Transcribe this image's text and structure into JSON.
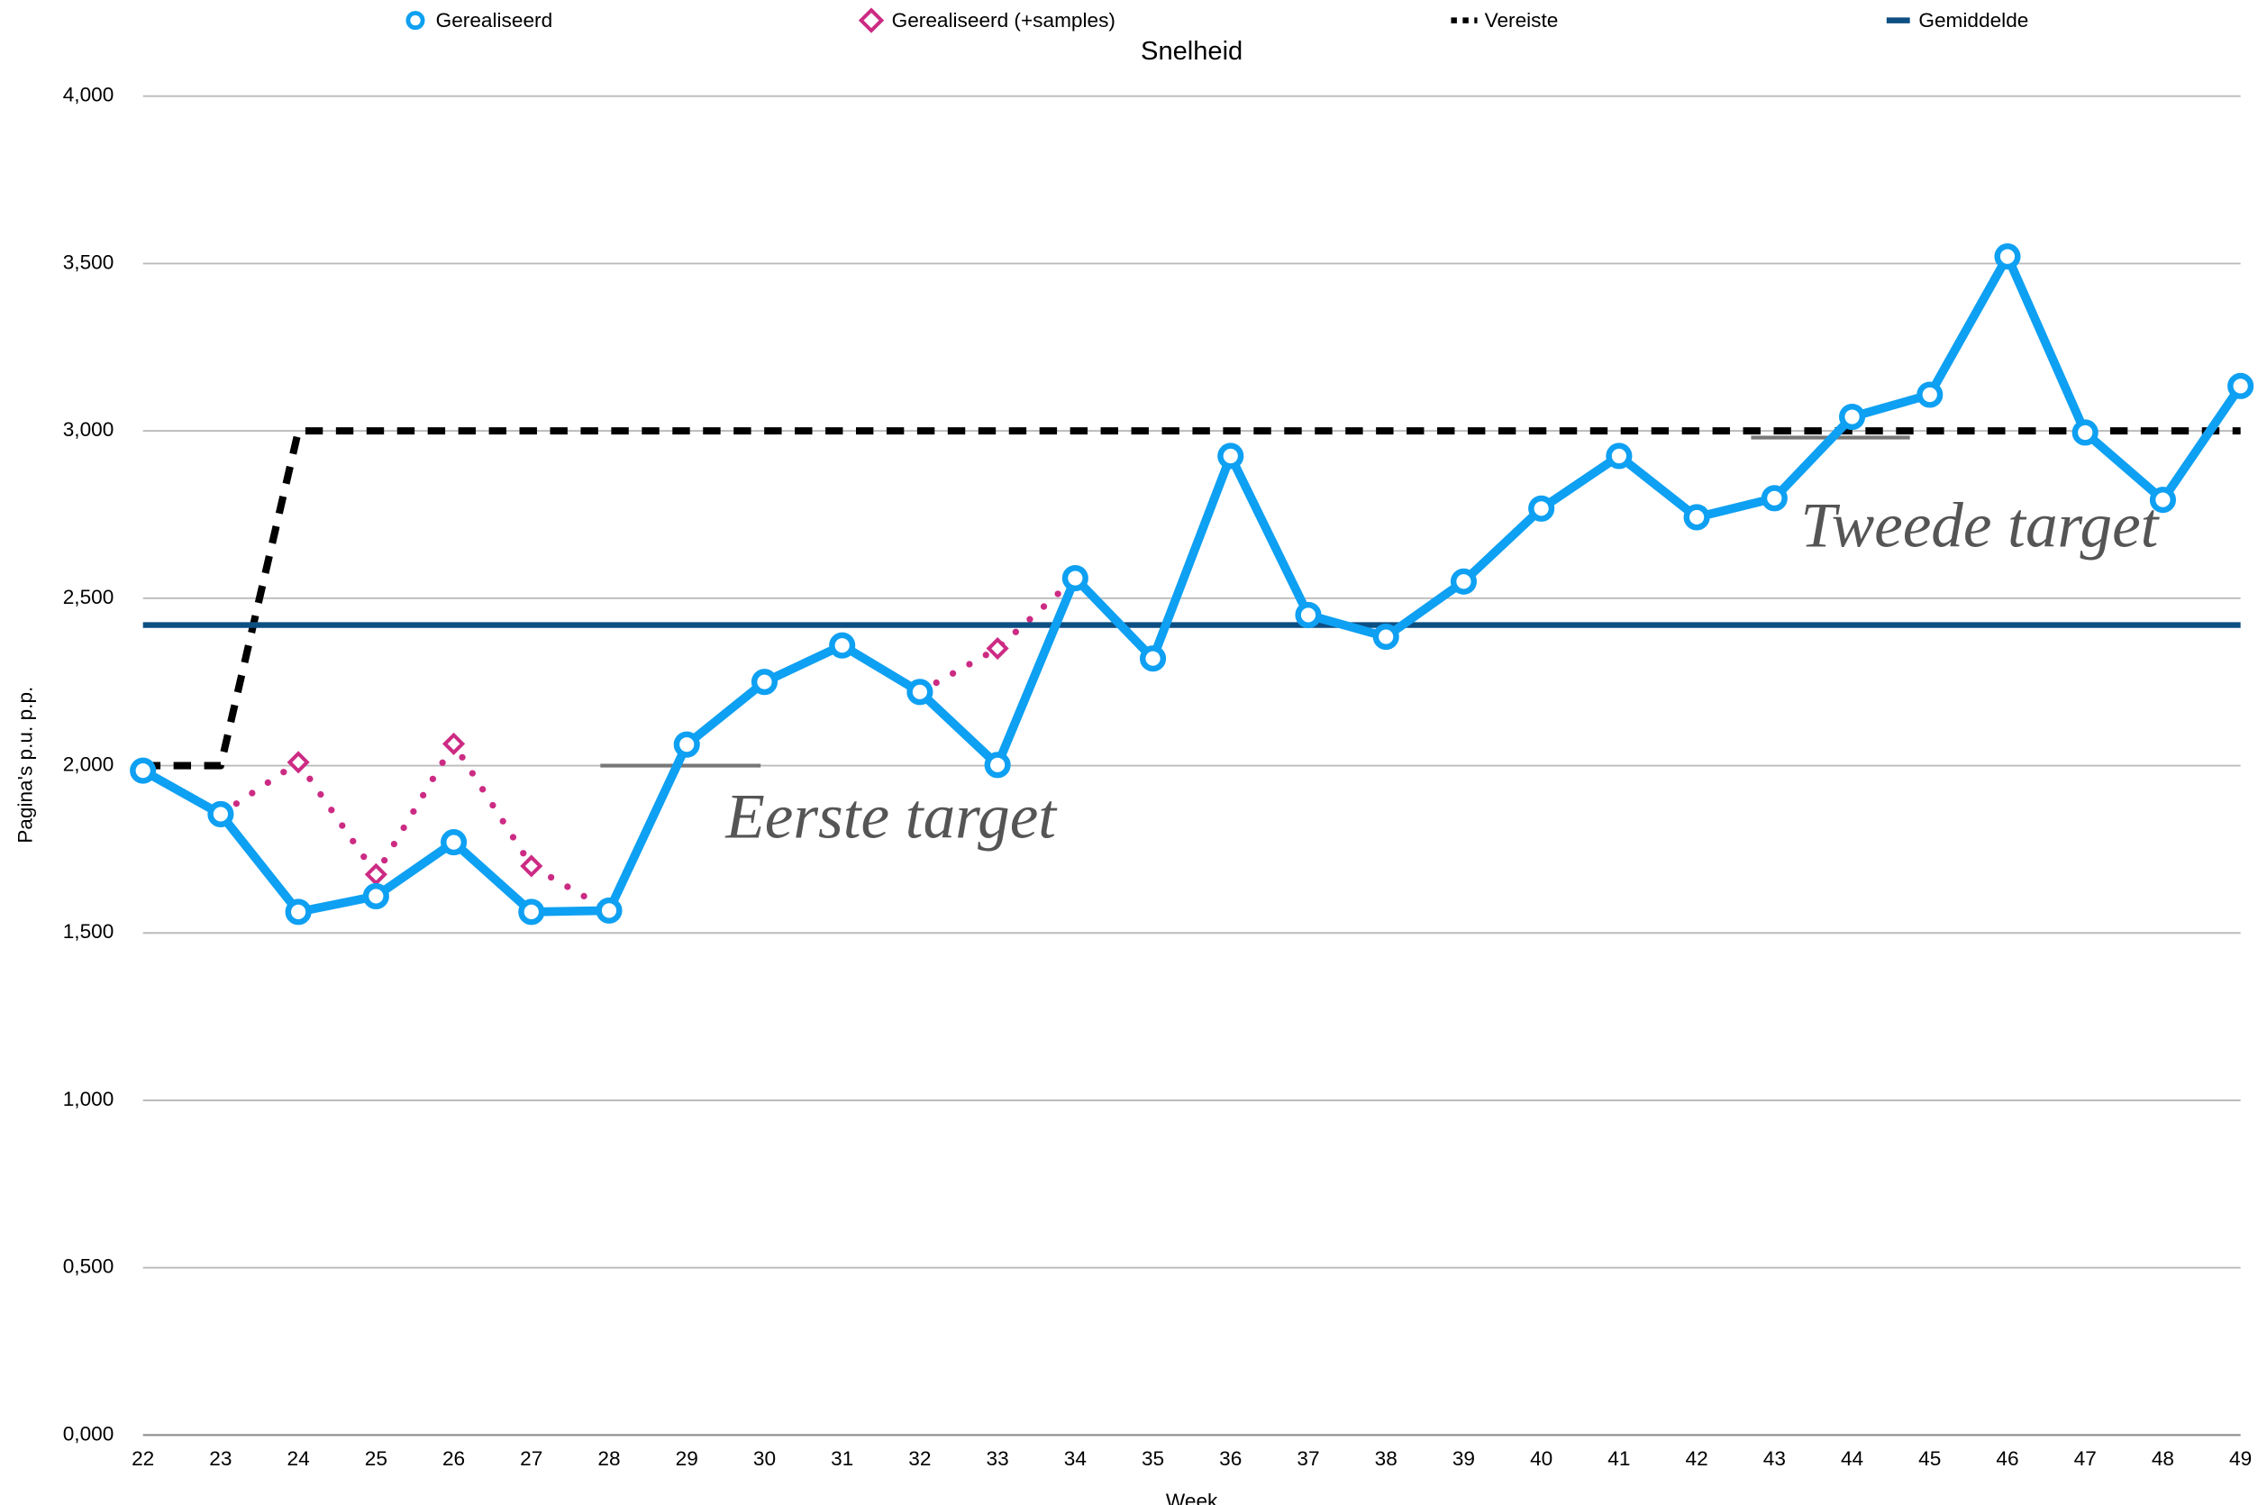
{
  "chart_data": {
    "type": "line",
    "title": "Snelheid",
    "x_label": "Week",
    "y_label": "Pagina's p.u. p.p.",
    "categories": [
      "22",
      "23",
      "24",
      "25",
      "26",
      "27",
      "28",
      "29",
      "30",
      "31",
      "32",
      "33",
      "34",
      "35",
      "36",
      "37",
      "38",
      "39",
      "40",
      "41",
      "42",
      "43",
      "44",
      "45",
      "46",
      "47",
      "48",
      "49"
    ],
    "series": [
      {
        "name": "Gerealiseerd (+samples)",
        "color": "#cc2b84",
        "style": "dotted",
        "marker": "diamond",
        "values": [
          null,
          1855,
          2010,
          1675,
          2065,
          1700,
          1567,
          null,
          null,
          null,
          2220,
          2350,
          2560,
          null,
          null,
          null,
          null,
          null,
          null,
          null,
          null,
          null,
          null,
          null,
          null,
          null,
          null,
          null
        ]
      },
      {
        "name": "Vereiste",
        "color": "#000000",
        "style": "dashed",
        "values": [
          2000,
          2000,
          3000,
          3000,
          3000,
          3000,
          3000,
          3000,
          3000,
          3000,
          3000,
          3000,
          3000,
          3000,
          3000,
          3000,
          3000,
          3000,
          3000,
          3000,
          3000,
          3000,
          3000,
          3000,
          3000,
          3000,
          3000,
          3000
        ]
      },
      {
        "name": "Gemiddelde",
        "color": "#0d4f82",
        "style": "solid",
        "values": [
          2420,
          2420,
          2420,
          2420,
          2420,
          2420,
          2420,
          2420,
          2420,
          2420,
          2420,
          2420,
          2420,
          2420,
          2420,
          2420,
          2420,
          2420,
          2420,
          2420,
          2420,
          2420,
          2420,
          2420,
          2420,
          2420,
          2420,
          2420
        ]
      },
      {
        "name": "Gerealiseerd",
        "color": "#0ea0f2",
        "style": "solid",
        "marker": "circle",
        "values": [
          1985,
          1855,
          1563,
          1610,
          1771,
          1563,
          1567,
          2063,
          2250,
          2359,
          2220,
          2002,
          2560,
          2320,
          2925,
          2450,
          2385,
          2550,
          2768,
          2925,
          2742,
          2799,
          3042,
          3108,
          3521,
          2995,
          2794,
          3134
        ]
      }
    ],
    "legend_order": [
      3,
      0,
      1,
      2
    ],
    "annotations": [
      {
        "text": "Eerste target",
        "value": 2000
      },
      {
        "text": "Tweede target",
        "value": 2980
      }
    ],
    "ylim": [
      0,
      4000
    ],
    "yticks": [
      {
        "value": 0,
        "label": "0,000"
      },
      {
        "value": 500,
        "label": "0,500"
      },
      {
        "value": 1000,
        "label": "1,000"
      },
      {
        "value": 1500,
        "label": "1,500"
      },
      {
        "value": 2000,
        "label": "2,000"
      },
      {
        "value": 2500,
        "label": "2,500"
      },
      {
        "value": 3000,
        "label": "3,000"
      },
      {
        "value": 3500,
        "label": "3,500"
      },
      {
        "value": 4000,
        "label": "4,000"
      }
    ],
    "grid": true
  }
}
